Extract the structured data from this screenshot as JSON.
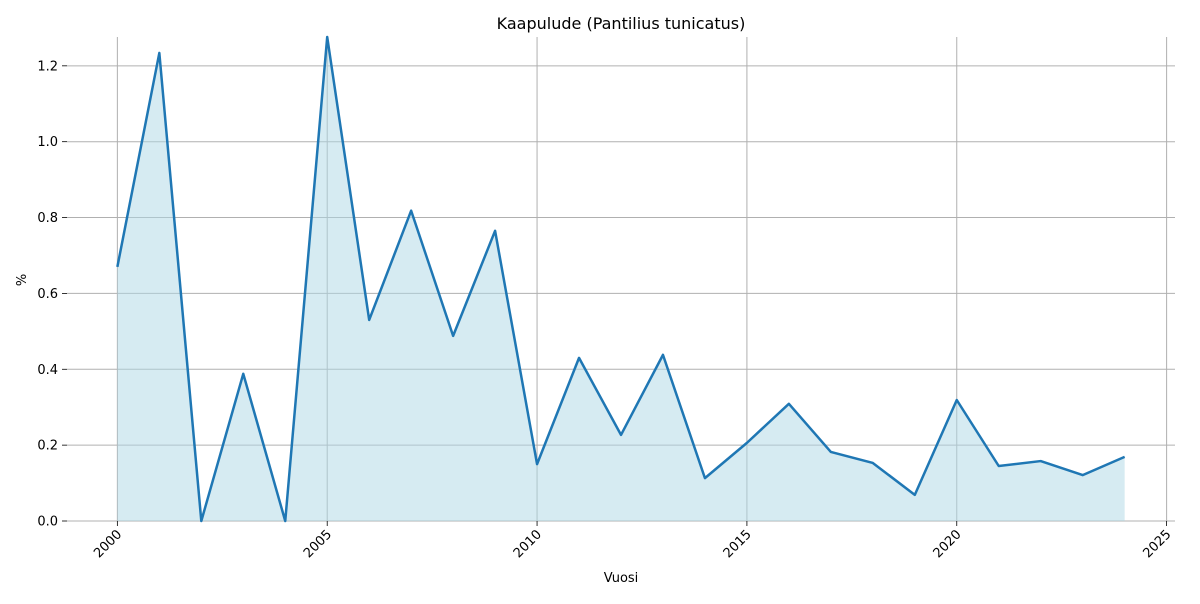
{
  "chart_data": {
    "type": "area",
    "title": "Kaapulude (Pantilius tunicatus)",
    "xlabel": "Vuosi",
    "ylabel": "%",
    "x": [
      2000,
      2001,
      2002,
      2003,
      2004,
      2005,
      2006,
      2007,
      2008,
      2009,
      2010,
      2011,
      2012,
      2013,
      2014,
      2015,
      2016,
      2017,
      2018,
      2019,
      2020,
      2021,
      2022,
      2023,
      2024
    ],
    "values": [
      0.67,
      1.234,
      0.0,
      0.388,
      0.0,
      1.276,
      0.53,
      0.818,
      0.488,
      0.765,
      0.15,
      0.43,
      0.227,
      0.438,
      0.113,
      0.206,
      0.309,
      0.182,
      0.153,
      0.069,
      0.319,
      0.145,
      0.158,
      0.121,
      0.169
    ],
    "xlim": [
      1998.8,
      2025.2
    ],
    "ylim": [
      0,
      1.276
    ],
    "xticks": [
      2000,
      2005,
      2010,
      2015,
      2020,
      2025
    ],
    "xtick_labels": [
      "2000",
      "2005",
      "2010",
      "2015",
      "2020",
      "2025"
    ],
    "yticks": [
      0,
      0.2,
      0.4,
      0.6,
      0.8,
      1.0,
      1.2
    ],
    "ytick_labels": [
      "0.0",
      "0.2",
      "0.4",
      "0.6",
      "0.8",
      "1.0",
      "1.2"
    ],
    "grid": true,
    "line_color": "#1f77b4",
    "fill_color": "#add8e6"
  }
}
